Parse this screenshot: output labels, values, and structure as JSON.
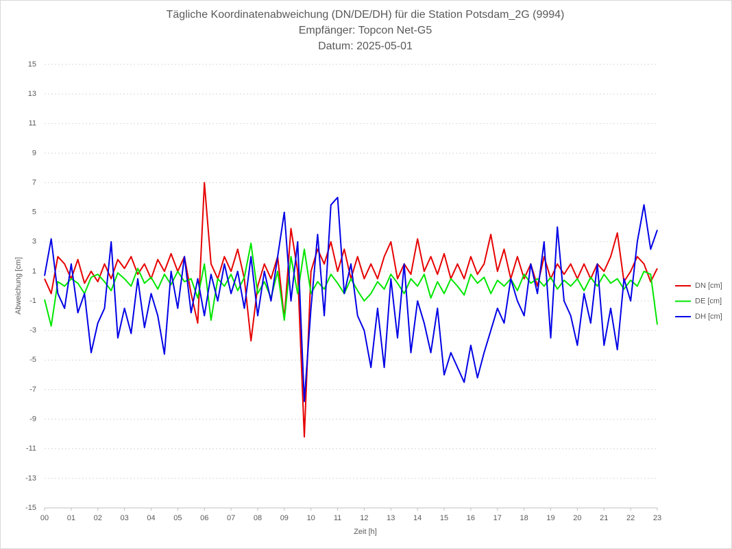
{
  "chart_data": {
    "type": "line",
    "title": "Tägliche Koordinatenabweichung (DN/DE/DH) für die Station Potsdam_2G (9994)",
    "subtitle": [
      "Empfänger: Topcon Net-G5",
      "Datum: 2025-05-01"
    ],
    "x_label": "Zeit [h]",
    "y_label": "Abweichung [cm]",
    "x": [
      0,
      0.25,
      0.5,
      0.75,
      1,
      1.25,
      1.5,
      1.75,
      2,
      2.25,
      2.5,
      2.75,
      3,
      3.25,
      3.5,
      3.75,
      4,
      4.25,
      4.5,
      4.75,
      5,
      5.25,
      5.5,
      5.75,
      6,
      6.25,
      6.5,
      6.75,
      7,
      7.25,
      7.5,
      7.75,
      8,
      8.25,
      8.5,
      8.75,
      9,
      9.25,
      9.5,
      9.75,
      10,
      10.25,
      10.5,
      10.75,
      11,
      11.25,
      11.5,
      11.75,
      12,
      12.25,
      12.5,
      12.75,
      13,
      13.25,
      13.5,
      13.75,
      14,
      14.25,
      14.5,
      14.75,
      15,
      15.25,
      15.5,
      15.75,
      16,
      16.25,
      16.5,
      16.75,
      17,
      17.25,
      17.5,
      17.75,
      18,
      18.25,
      18.5,
      18.75,
      19,
      19.25,
      19.5,
      19.75,
      20,
      20.25,
      20.5,
      20.75,
      21,
      21.25,
      21.5,
      21.75,
      22,
      22.25,
      22.5,
      22.75,
      23
    ],
    "series": [
      {
        "name": "DN [cm]",
        "color": "#e60000",
        "values": [
          0.5,
          -0.5,
          2.0,
          1.5,
          0.5,
          1.8,
          0.2,
          1.0,
          0.3,
          1.5,
          0.5,
          1.8,
          1.2,
          2.0,
          0.8,
          1.5,
          0.5,
          1.8,
          1.0,
          2.2,
          1.0,
          2.0,
          -0.5,
          -2.5,
          7.0,
          1.5,
          0.5,
          2.0,
          1.0,
          2.5,
          0.5,
          -3.7,
          0.0,
          1.5,
          0.5,
          2.0,
          -2.2,
          3.9,
          1.0,
          -10.2,
          1.0,
          2.5,
          1.5,
          3.0,
          1.0,
          2.5,
          0.5,
          2.0,
          0.5,
          1.5,
          0.5,
          2.0,
          3.0,
          0.5,
          1.5,
          0.8,
          3.2,
          1.0,
          2.0,
          0.8,
          2.2,
          0.5,
          1.5,
          0.5,
          2.0,
          0.8,
          1.5,
          3.5,
          1.0,
          2.5,
          0.5,
          2.0,
          0.5,
          1.5,
          0.0,
          2.0,
          0.5,
          1.5,
          0.8,
          1.5,
          0.5,
          1.5,
          0.5,
          1.5,
          1.0,
          2.0,
          3.6,
          0.3,
          1.0,
          2.0,
          1.5,
          0.3,
          1.2
        ]
      },
      {
        "name": "DE [cm]",
        "color": "#00e600",
        "values": [
          -0.9,
          -2.7,
          0.3,
          0.0,
          0.5,
          0.2,
          -0.5,
          0.6,
          0.8,
          0.3,
          -0.3,
          0.9,
          0.5,
          0.0,
          1.2,
          0.2,
          0.6,
          -0.2,
          0.8,
          0.1,
          1.0,
          0.3,
          0.5,
          -0.8,
          1.5,
          -2.3,
          0.5,
          0.0,
          0.8,
          -0.3,
          0.6,
          2.9,
          -0.5,
          0.3,
          -0.8,
          1.0,
          -2.3,
          2.0,
          -0.5,
          2.5,
          -0.5,
          0.3,
          -0.2,
          0.8,
          0.2,
          -0.5,
          0.5,
          -0.3,
          -1.0,
          -0.5,
          0.3,
          -0.2,
          0.8,
          0.2,
          -0.5,
          0.5,
          0.0,
          0.8,
          -0.8,
          0.3,
          -0.5,
          0.5,
          0.0,
          -0.6,
          0.8,
          0.2,
          0.6,
          -0.5,
          0.4,
          0.0,
          0.5,
          -0.3,
          0.8,
          0.2,
          0.5,
          0.0,
          0.6,
          -0.2,
          0.4,
          0.0,
          0.5,
          -0.3,
          0.6,
          0.0,
          0.8,
          0.2,
          0.5,
          -0.2,
          0.4,
          0.0,
          1.0,
          0.8,
          -2.6
        ]
      },
      {
        "name": "DH [cm]",
        "color": "#0000e6",
        "values": [
          0.7,
          3.2,
          -0.5,
          -1.5,
          1.5,
          -1.8,
          -0.5,
          -4.5,
          -2.5,
          -1.5,
          3.0,
          -3.5,
          -1.5,
          -3.2,
          0.5,
          -2.8,
          -0.5,
          -2.0,
          -4.6,
          1.0,
          -1.5,
          2.0,
          -1.8,
          0.5,
          -2.0,
          0.8,
          -1.0,
          1.5,
          -0.5,
          1.0,
          -1.5,
          2.0,
          -2.0,
          1.0,
          -1.0,
          2.0,
          5.0,
          -1.0,
          3.0,
          -7.8,
          -1.5,
          3.5,
          -2.0,
          5.5,
          6.0,
          -0.5,
          1.5,
          -2.0,
          -3.0,
          -5.5,
          -1.5,
          -5.5,
          0.5,
          -3.5,
          1.5,
          -4.5,
          -1.0,
          -2.5,
          -4.5,
          -1.5,
          -6.0,
          -4.5,
          -5.5,
          -6.5,
          -4.0,
          -6.2,
          -4.5,
          -3.0,
          -1.5,
          -2.5,
          0.5,
          -1.0,
          -2.0,
          1.5,
          -0.5,
          3.0,
          -3.5,
          4.0,
          -1.0,
          -2.0,
          -4.0,
          -0.5,
          -2.5,
          1.5,
          -4.0,
          -1.5,
          -4.3,
          0.5,
          -1.0,
          3.0,
          5.5,
          2.5,
          3.8
        ]
      }
    ],
    "xlim": [
      0,
      23
    ],
    "xticks": [
      {
        "value": 0,
        "label": "00"
      },
      {
        "value": 1,
        "label": "01"
      },
      {
        "value": 2,
        "label": "02"
      },
      {
        "value": 3,
        "label": "03"
      },
      {
        "value": 4,
        "label": "04"
      },
      {
        "value": 5,
        "label": "05"
      },
      {
        "value": 6,
        "label": "06"
      },
      {
        "value": 7,
        "label": "07"
      },
      {
        "value": 8,
        "label": "08"
      },
      {
        "value": 9,
        "label": "09"
      },
      10,
      11,
      12,
      13,
      14,
      15,
      16,
      17,
      18,
      19,
      20,
      21,
      22,
      23
    ],
    "ylim": [
      -15,
      15
    ],
    "yticks": [
      -15,
      -13,
      -11,
      -9,
      -7,
      -5,
      -3,
      -1,
      1,
      3,
      5,
      7,
      9,
      11,
      13,
      15
    ],
    "grid": true,
    "legend": "right"
  }
}
